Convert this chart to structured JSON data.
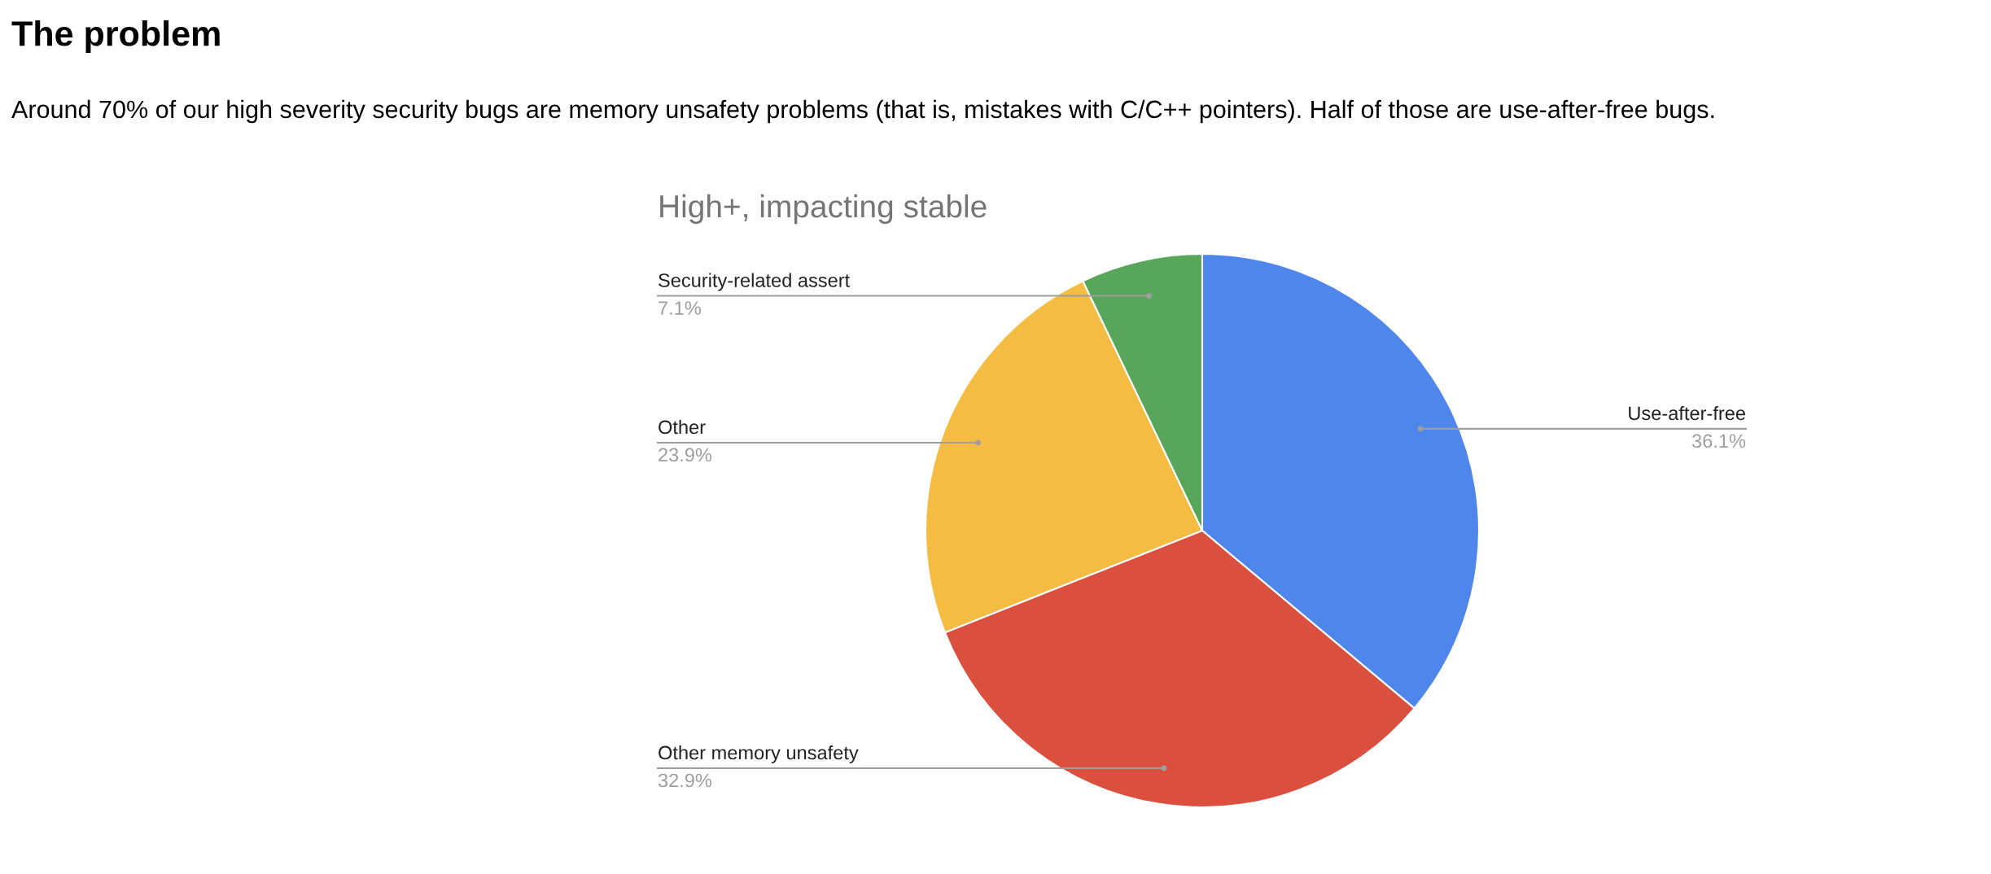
{
  "chart_data": {
    "type": "pie",
    "title": "High+, impacting stable",
    "annotations": [
      "The problem",
      "Around 70% of our high severity security bugs are memory unsafety problems (that is, mistakes with C/C++ pointers). Half of those are use-after-free bugs."
    ],
    "categories": [
      "Use-after-free",
      "Other memory unsafety",
      "Other",
      "Security-related assert"
    ],
    "values": [
      36.1,
      32.9,
      23.9,
      7.1
    ],
    "colors": [
      "#4e86ec",
      "#db4f3e",
      "#f4bc42",
      "#58a65c"
    ],
    "value_labels": [
      "36.1%",
      "32.9%",
      "23.9%",
      "7.1%"
    ],
    "legend": false
  }
}
